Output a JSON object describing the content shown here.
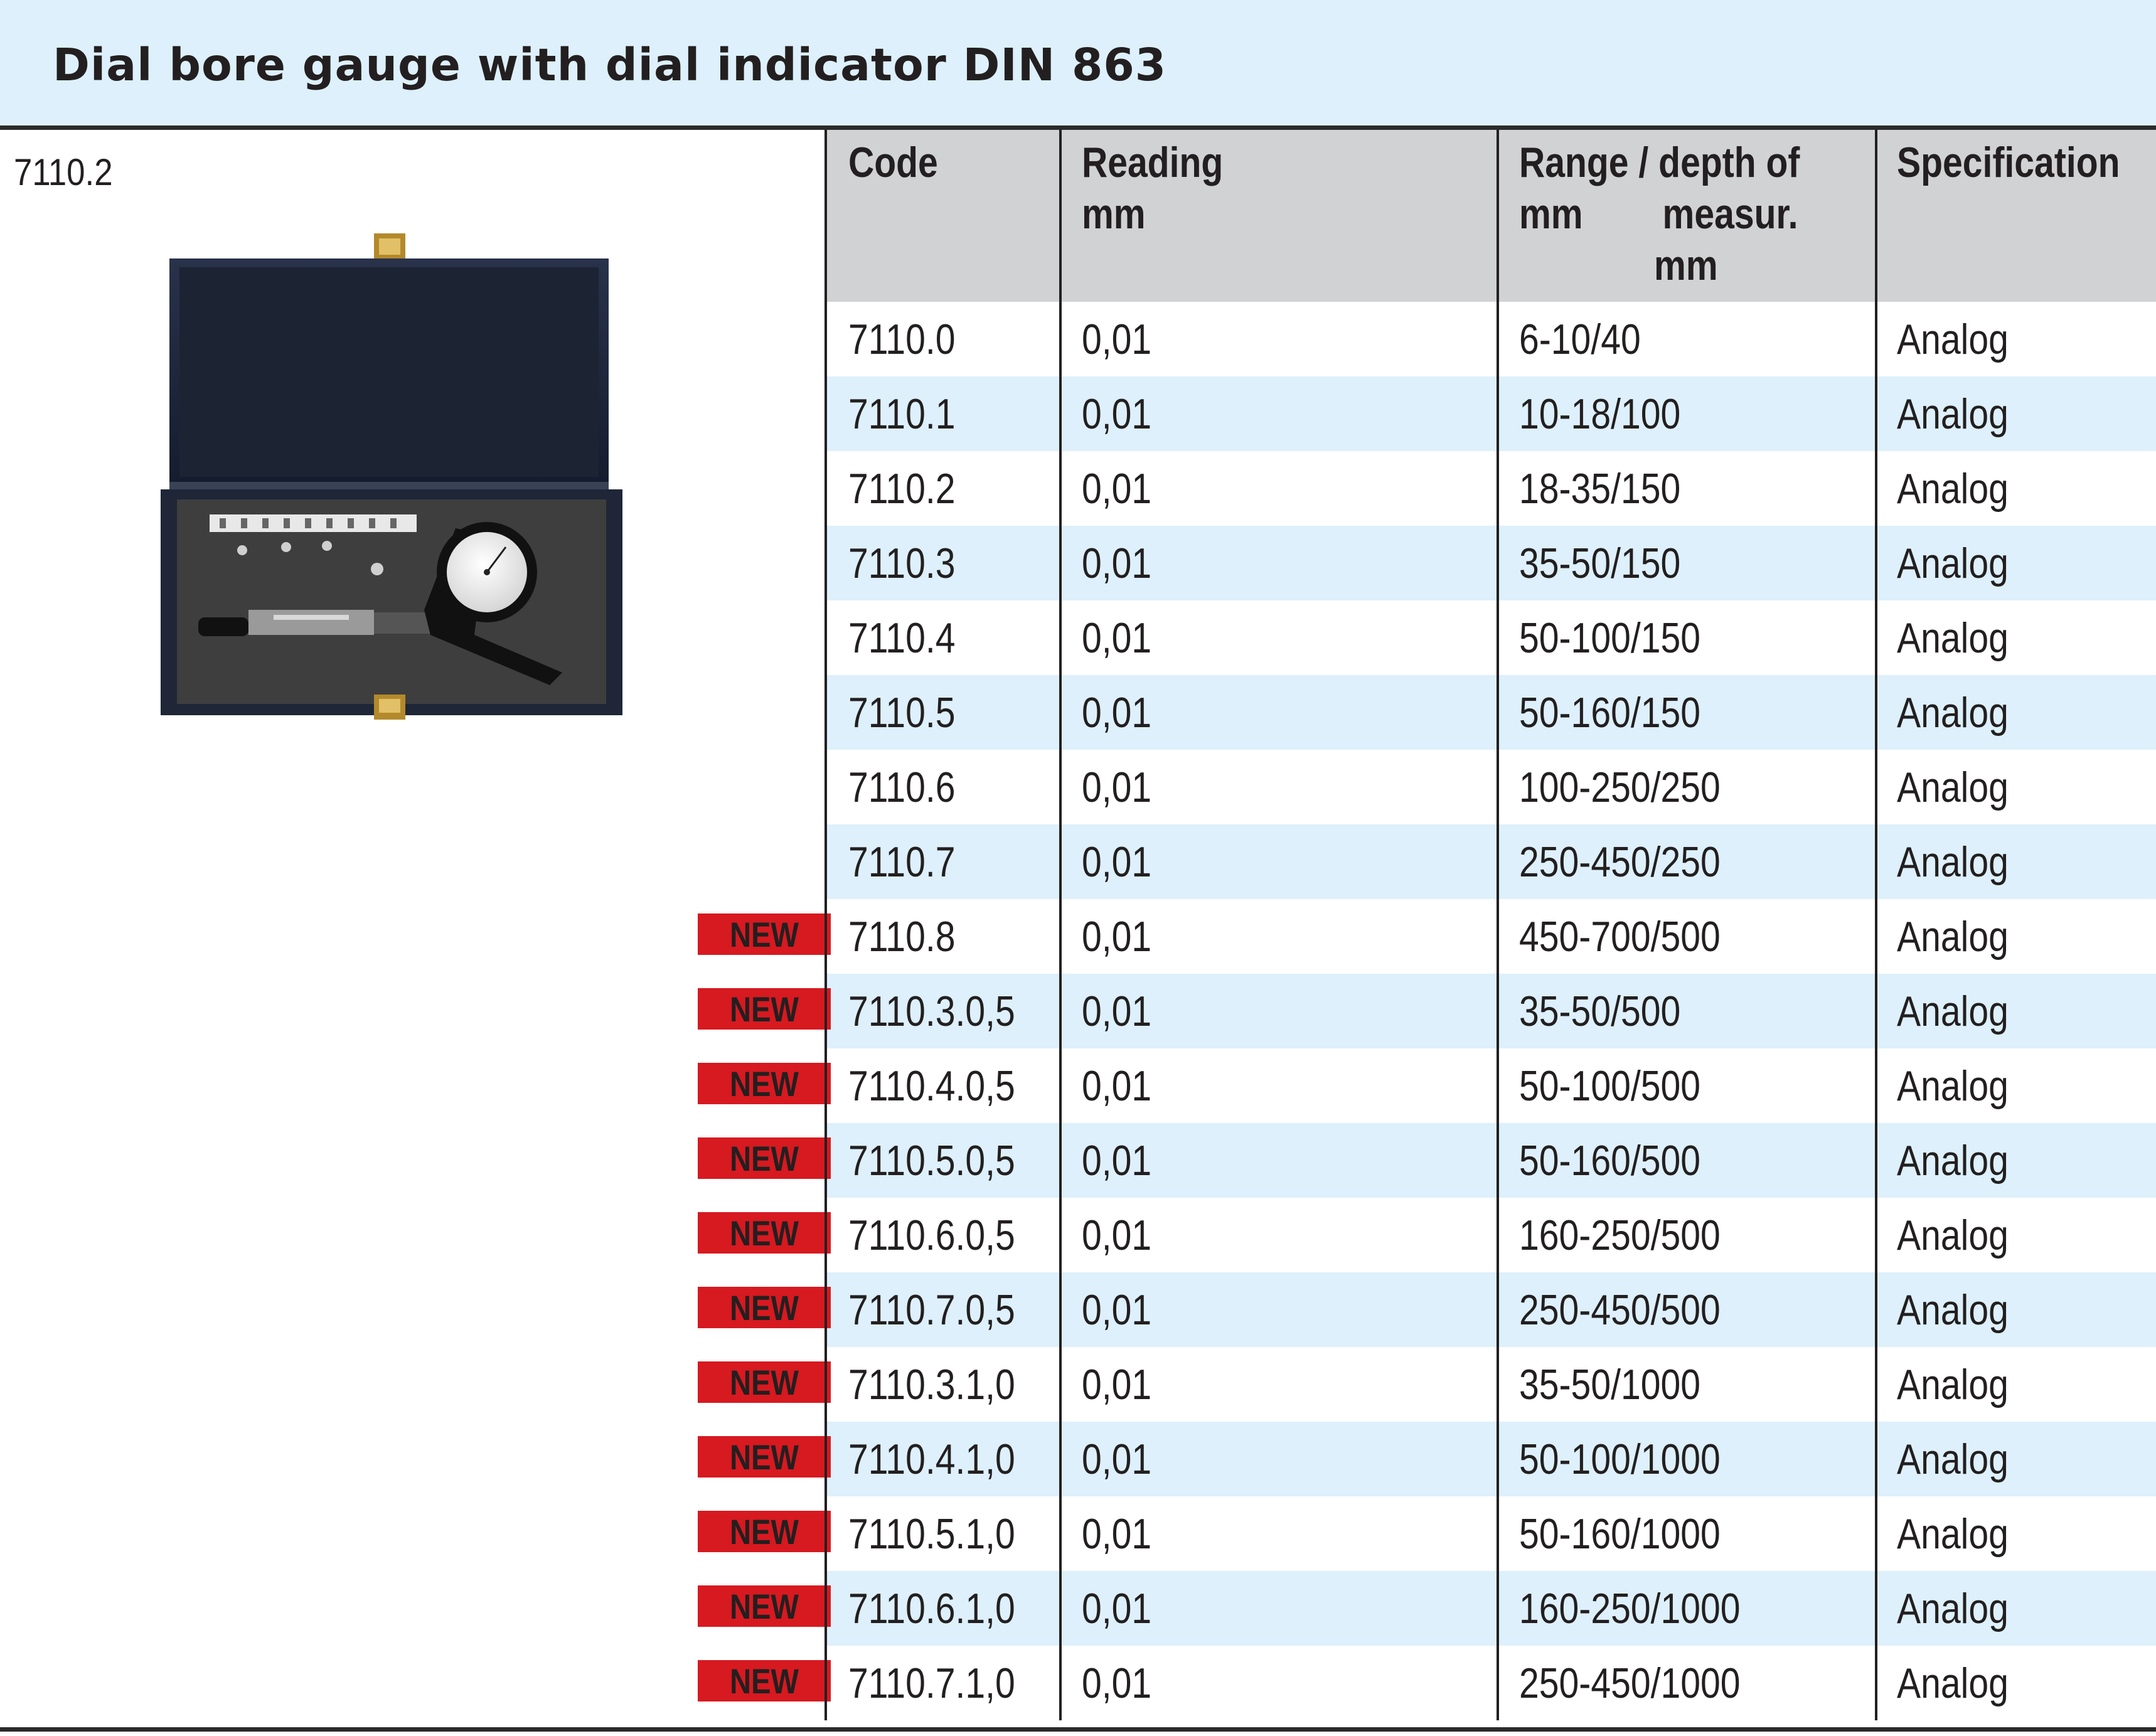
{
  "title": "Dial bore gauge with dial indicator DIN 863",
  "image_caption": "7110.2",
  "colors": {
    "header_bg": "#d0d2d3",
    "stripe_bg": "#ddf0fb",
    "new_badge": "#d71920"
  },
  "table": {
    "headers": {
      "code": "Code",
      "reading": [
        "Reading",
        "mm"
      ],
      "range": [
        "Range / depth of",
        "mm        measur.",
        "mm"
      ],
      "spec": "Specification"
    },
    "rows": [
      {
        "code": "7110.0",
        "reading": "0,01",
        "range": "6-10/40",
        "spec": "Analog",
        "badge": ""
      },
      {
        "code": "7110.1",
        "reading": "0,01",
        "range": "10-18/100",
        "spec": "Analog",
        "badge": ""
      },
      {
        "code": "7110.2",
        "reading": "0,01",
        "range": "18-35/150",
        "spec": "Analog",
        "badge": ""
      },
      {
        "code": "7110.3",
        "reading": "0,01",
        "range": "35-50/150",
        "spec": "Analog",
        "badge": ""
      },
      {
        "code": "7110.4",
        "reading": "0,01",
        "range": "50-100/150",
        "spec": "Analog",
        "badge": ""
      },
      {
        "code": "7110.5",
        "reading": "0,01",
        "range": "50-160/150",
        "spec": "Analog",
        "badge": ""
      },
      {
        "code": "7110.6",
        "reading": "0,01",
        "range": "100-250/250",
        "spec": "Analog",
        "badge": ""
      },
      {
        "code": "7110.7",
        "reading": "0,01",
        "range": "250-450/250",
        "spec": "Analog",
        "badge": ""
      },
      {
        "code": "7110.8",
        "reading": "0,01",
        "range": "450-700/500",
        "spec": "Analog",
        "badge": "NEW"
      },
      {
        "code": "7110.3.0,5",
        "reading": "0,01",
        "range": "35-50/500",
        "spec": "Analog",
        "badge": "NEW"
      },
      {
        "code": "7110.4.0,5",
        "reading": "0,01",
        "range": "50-100/500",
        "spec": "Analog",
        "badge": "NEW"
      },
      {
        "code": "7110.5.0,5",
        "reading": "0,01",
        "range": "50-160/500",
        "spec": "Analog",
        "badge": "NEW"
      },
      {
        "code": "7110.6.0,5",
        "reading": "0,01",
        "range": "160-250/500",
        "spec": "Analog",
        "badge": "NEW"
      },
      {
        "code": "7110.7.0,5",
        "reading": "0,01",
        "range": "250-450/500",
        "spec": "Analog",
        "badge": "NEW"
      },
      {
        "code": "7110.3.1,0",
        "reading": "0,01",
        "range": "35-50/1000",
        "spec": "Analog",
        "badge": "NEW"
      },
      {
        "code": "7110.4.1,0",
        "reading": "0,01",
        "range": "50-100/1000",
        "spec": "Analog",
        "badge": "NEW"
      },
      {
        "code": "7110.5.1,0",
        "reading": "0,01",
        "range": "50-160/1000",
        "spec": "Analog",
        "badge": "NEW"
      },
      {
        "code": "7110.6.1,0",
        "reading": "0,01",
        "range": "160-250/1000",
        "spec": "Analog",
        "badge": "NEW"
      },
      {
        "code": "7110.7.1,0",
        "reading": "0,01",
        "range": "250-450/1000",
        "spec": "Analog",
        "badge": "NEW"
      }
    ]
  }
}
